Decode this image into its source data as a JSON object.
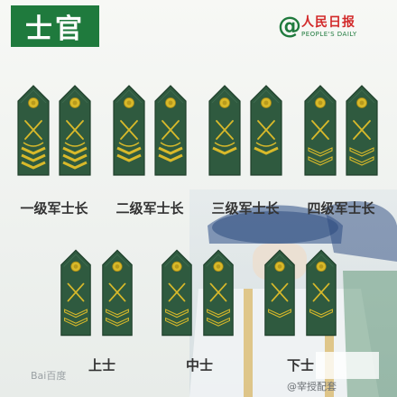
{
  "header": {
    "title": "士官"
  },
  "brand": {
    "logo_mark": "@",
    "name_cn": "人民日报",
    "name_en": "PEOPLE'S DAILY"
  },
  "ranks": [
    {
      "label": "一级军士长",
      "stripes": 3,
      "hollow": 0,
      "leaves": true
    },
    {
      "label": "二级军士长",
      "stripes": 2,
      "hollow": 0,
      "leaves": true
    },
    {
      "label": "三级军士长",
      "stripes": 1,
      "hollow": 0,
      "leaves": true
    },
    {
      "label": "四级军士长",
      "stripes": 0,
      "hollow": 2,
      "leaves": false
    },
    {
      "label": "上士",
      "stripes": 0,
      "hollow": 2,
      "leaves": false
    },
    {
      "label": "中士",
      "stripes": 0,
      "hollow": 2,
      "leaves": false
    },
    {
      "label": "下士",
      "stripes": 0,
      "hollow": 1,
      "leaves": false
    }
  ],
  "watermarks": {
    "left": "Bai百度",
    "right": "@宰授配套"
  },
  "colors": {
    "board": "#2f5a3f",
    "board_edge": "#1f3f2b",
    "gold": "#d8b92a",
    "brand_green": "#1f7a3d"
  }
}
